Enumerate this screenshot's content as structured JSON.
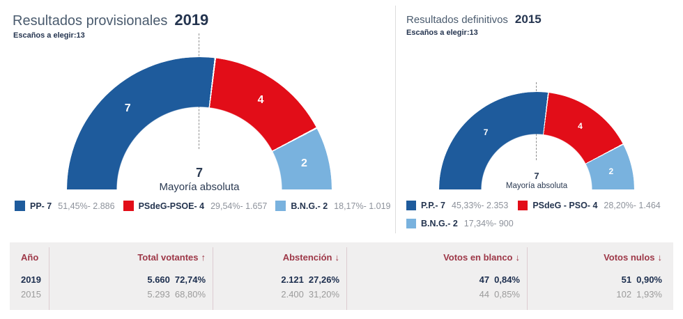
{
  "left_panel": {
    "title": "Resultados provisionales",
    "year": "2019",
    "seats_label": "Escaños a elegir:",
    "seats_count": "13",
    "center_value": "7",
    "center_label": "Mayoría absoluta",
    "legend": [
      {
        "label": "PP- 7",
        "value": "51,45%- 2.886"
      },
      {
        "label": "PSdeG-PSOE- 4",
        "value": "29,54%- 1.657"
      },
      {
        "label": "B.N.G.- 2",
        "value": "18,17%- 1.019"
      }
    ]
  },
  "right_panel": {
    "title": "Resultados definitivos",
    "year": "2015",
    "seats_label": "Escaños a elegir:",
    "seats_count": "13",
    "center_value": "7",
    "center_label": "Mayoría absoluta",
    "legend": [
      {
        "label": "P.P.- 7",
        "value": "45,33%- 2.353"
      },
      {
        "label": "PSdeG - PSO- 4",
        "value": "28,20%- 1.464"
      },
      {
        "label": "B.N.G.- 2",
        "value": "17,34%- 900"
      }
    ]
  },
  "table": {
    "columns": [
      {
        "label": "Año",
        "arrow": ""
      },
      {
        "label": "Total votantes",
        "arrow": "↑"
      },
      {
        "label": "Abstención",
        "arrow": "↓"
      },
      {
        "label": "Votos en blanco",
        "arrow": "↓"
      },
      {
        "label": "Votos nulos",
        "arrow": "↓"
      }
    ],
    "rows": [
      {
        "year": "2019",
        "total": "5.660",
        "total_pct": "72,74%",
        "abstencion": "2.121",
        "abstencion_pct": "27,26%",
        "blanco": "47",
        "blanco_pct": "0,84%",
        "nulos": "51",
        "nulos_pct": "0,90%"
      },
      {
        "year": "2015",
        "total": "5.293",
        "total_pct": "68,80%",
        "abstencion": "2.400",
        "abstencion_pct": "31,20%",
        "blanco": "44",
        "blanco_pct": "0,85%",
        "nulos": "102",
        "nulos_pct": "1,93%"
      }
    ]
  },
  "chart_data": [
    {
      "type": "pie",
      "subtype": "half-donut-seat-arc",
      "title": "Resultados provisionales 2019",
      "categories": [
        "PP",
        "PSdeG-PSOE",
        "B.N.G."
      ],
      "values": [
        7,
        4,
        2
      ],
      "percentages": [
        51.45,
        29.54,
        18.17
      ],
      "votes": [
        2886,
        1657,
        1019
      ],
      "colors": [
        "#1e5b9c",
        "#e20d18",
        "#79b2de"
      ],
      "total_seats": 13,
      "majority_seats": 7,
      "legend_position": "bottom"
    },
    {
      "type": "pie",
      "subtype": "half-donut-seat-arc",
      "title": "Resultados definitivos 2015",
      "categories": [
        "P.P.",
        "PSdeG - PSO",
        "B.N.G."
      ],
      "values": [
        7,
        4,
        2
      ],
      "percentages": [
        45.33,
        28.2,
        17.34
      ],
      "votes": [
        2353,
        1464,
        900
      ],
      "colors": [
        "#1e5b9c",
        "#e20d18",
        "#79b2de"
      ],
      "total_seats": 13,
      "majority_seats": 7,
      "legend_position": "bottom"
    }
  ],
  "colors": {
    "pp_blue": "#1e5b9c",
    "psoe_red": "#e20d18",
    "bng_light_blue": "#79b2de",
    "table_header_red": "#9d3747",
    "dark_navy": "#24344f",
    "muted_gray": "#8d929b"
  }
}
